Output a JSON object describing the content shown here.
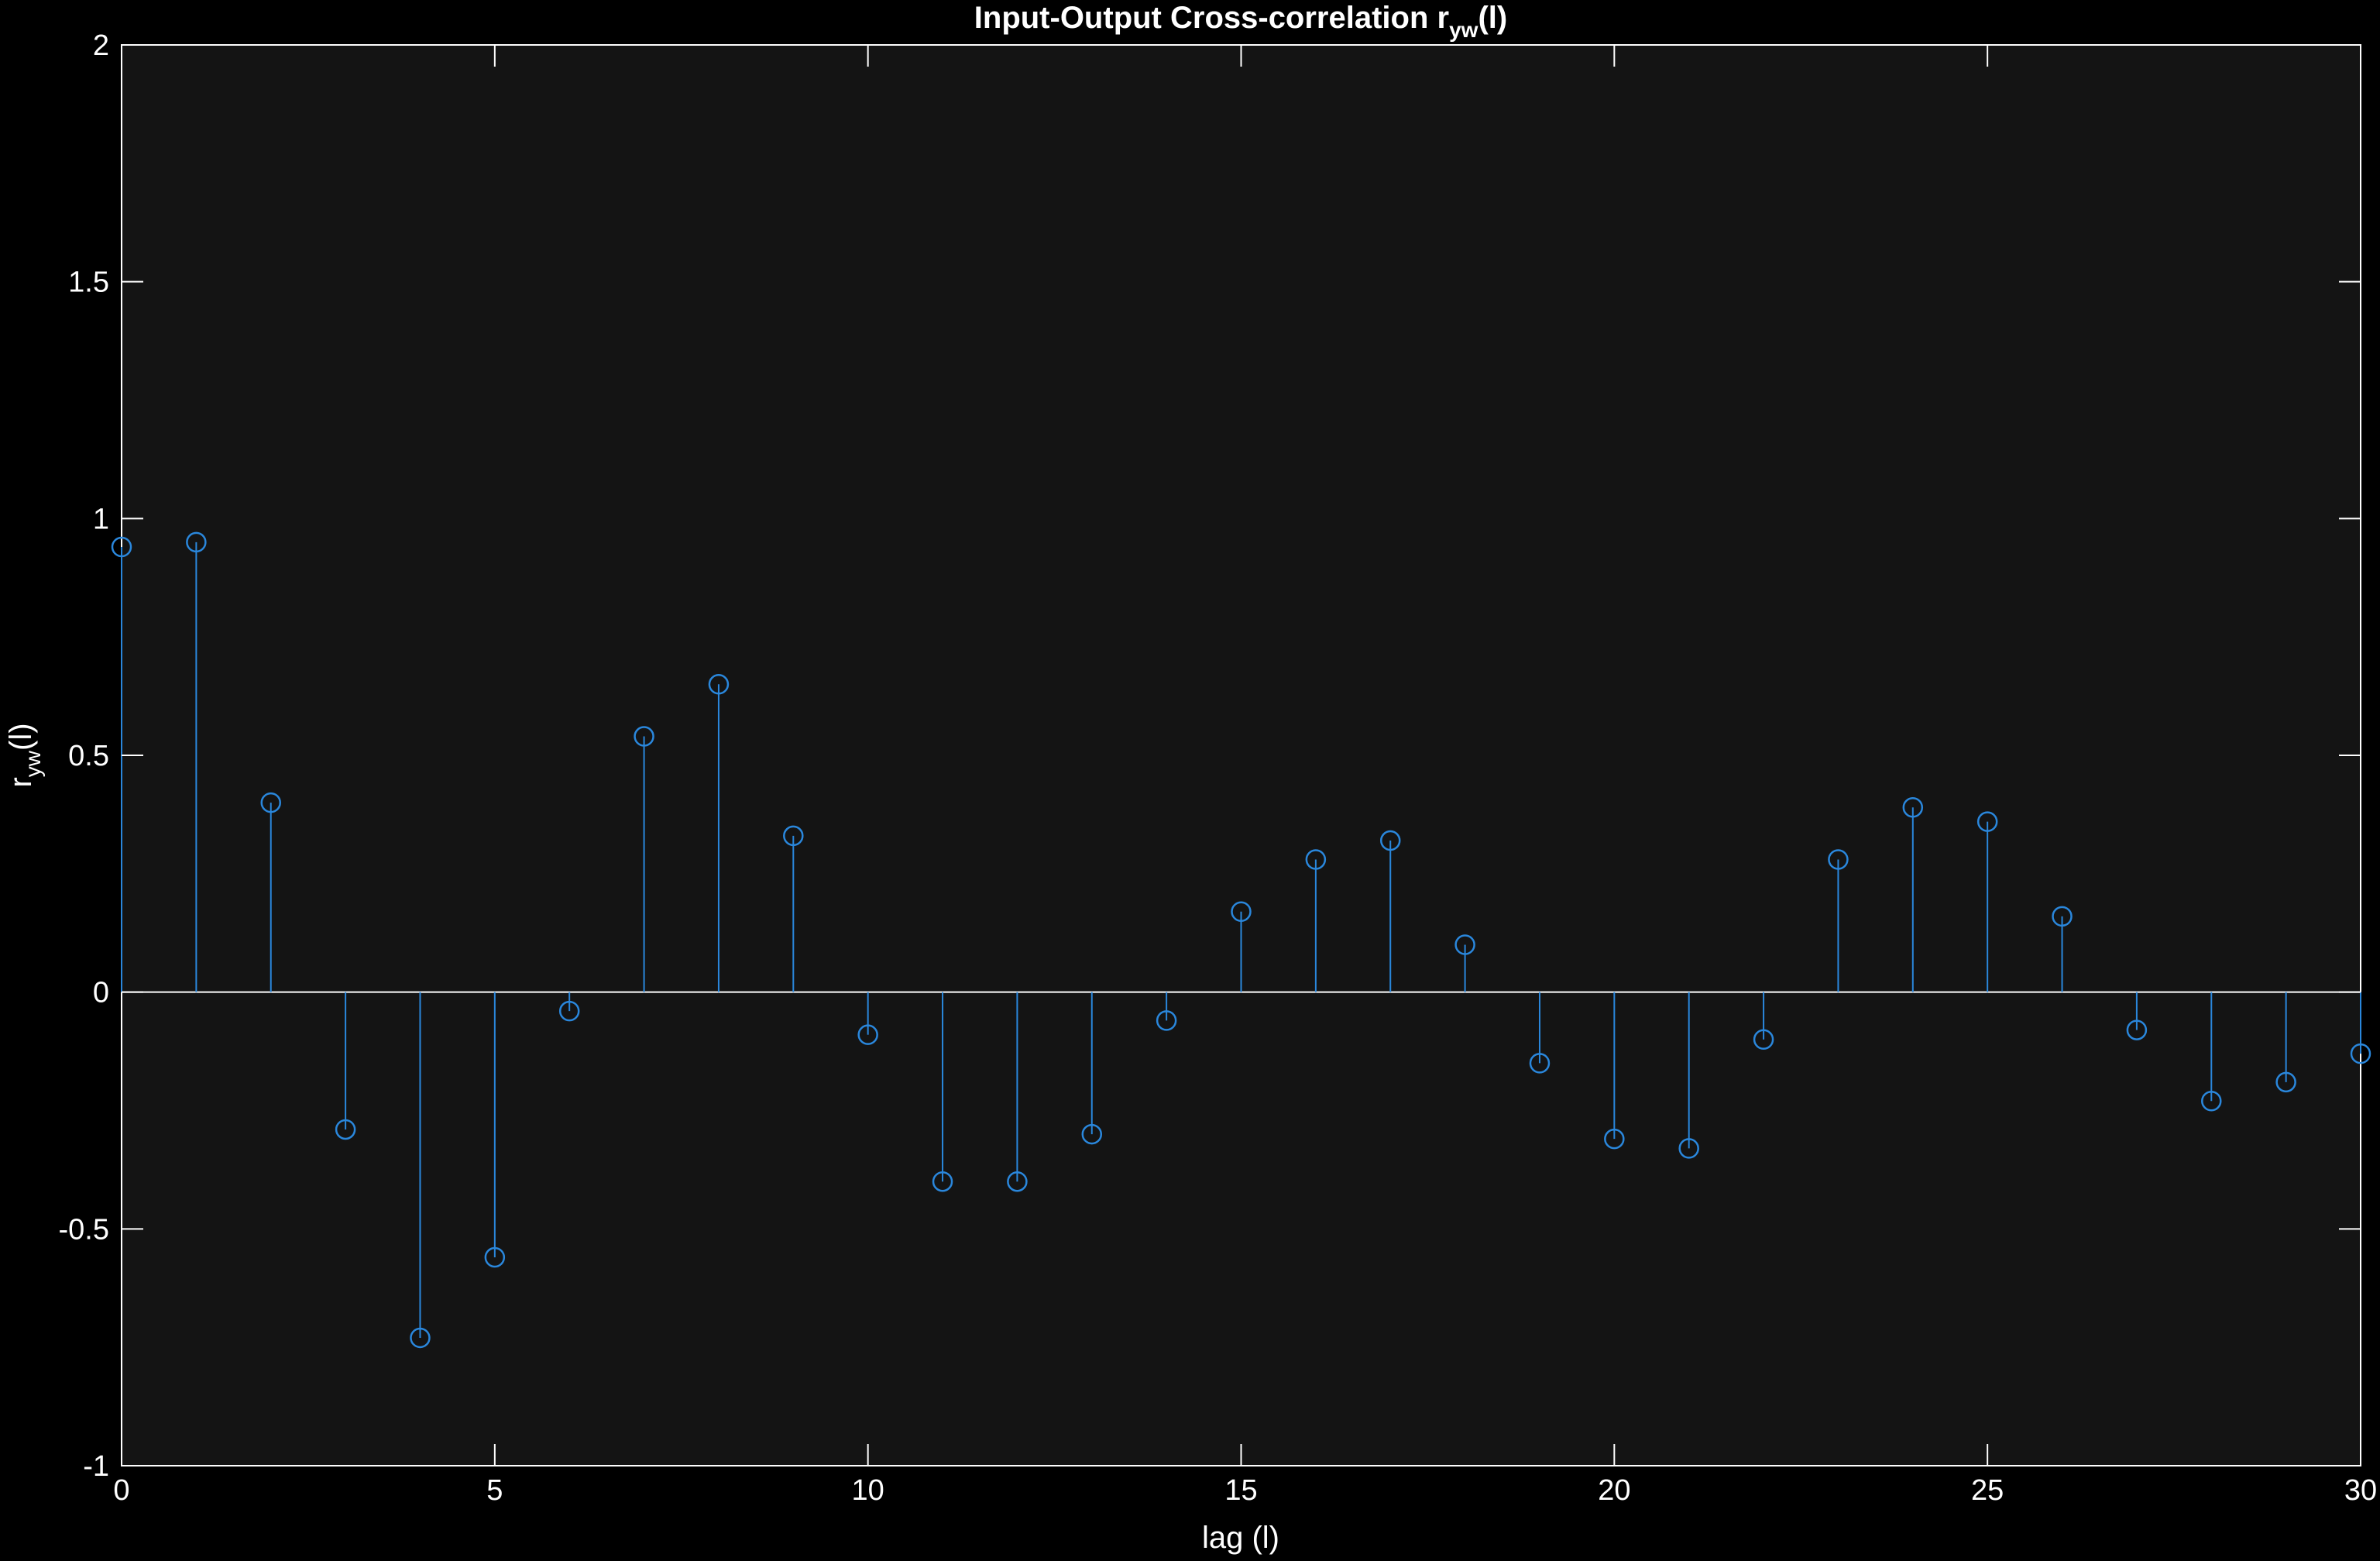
{
  "chart_data": {
    "type": "stem",
    "title": {
      "main": "Input-Output  Cross-correlation  r",
      "subscript": "yw",
      "suffix": "(l)"
    },
    "xlabel": "lag (l)",
    "ylabel": {
      "main": "r",
      "subscript": "yw",
      "suffix": "(l)"
    },
    "xlim": [
      0,
      30
    ],
    "ylim": [
      -1,
      2
    ],
    "xticks": [
      0,
      5,
      10,
      15,
      20,
      25,
      30
    ],
    "yticks": [
      -1,
      -0.5,
      0,
      0.5,
      1,
      1.5,
      2
    ],
    "x": [
      0,
      1,
      2,
      3,
      4,
      5,
      6,
      7,
      8,
      9,
      10,
      11,
      12,
      13,
      14,
      15,
      16,
      17,
      18,
      19,
      20,
      21,
      22,
      23,
      24,
      25,
      26,
      27,
      28,
      29,
      30
    ],
    "values": [
      0.94,
      0.95,
      0.4,
      -0.29,
      -0.73,
      -0.56,
      -0.04,
      0.54,
      0.65,
      0.33,
      -0.09,
      -0.4,
      -0.4,
      -0.3,
      -0.06,
      0.17,
      0.28,
      0.32,
      0.1,
      -0.15,
      -0.31,
      -0.33,
      -0.1,
      0.28,
      0.39,
      0.36,
      0.16,
      -0.08,
      -0.23,
      -0.19,
      -0.13
    ],
    "grid": false,
    "colors": {
      "figure_background": "#000000",
      "axes_background": "#141414",
      "axes_line": "#ffffff",
      "stem": "#2a87dc",
      "text": "#ffffff"
    }
  }
}
